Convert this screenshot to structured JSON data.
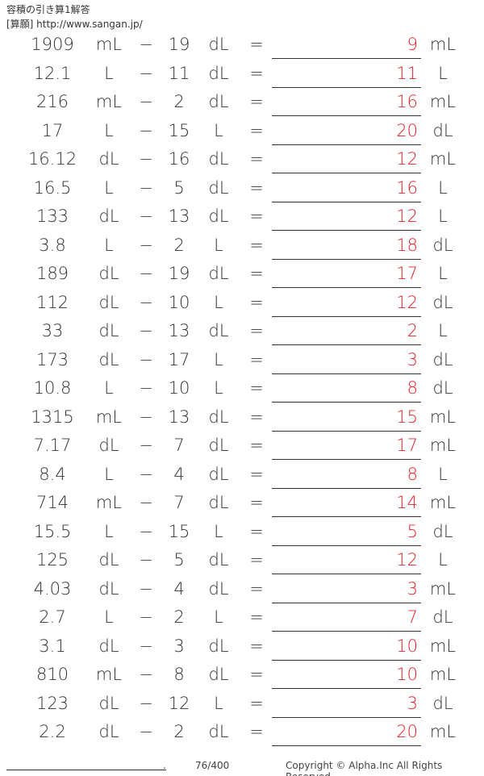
{
  "header": {
    "title": "容積の引き算1解答",
    "subtitle": "[算願] http://www.sangan.jp/"
  },
  "rows": [
    {
      "a": "1909",
      "ua": "mL",
      "op": "−",
      "b": "19",
      "ub": "dL",
      "eq": "=",
      "ans": "9",
      "uans": "mL"
    },
    {
      "a": "12.1",
      "ua": "L",
      "op": "−",
      "b": "11",
      "ub": "dL",
      "eq": "=",
      "ans": "11",
      "uans": "L"
    },
    {
      "a": "216",
      "ua": "mL",
      "op": "−",
      "b": "2",
      "ub": "dL",
      "eq": "=",
      "ans": "16",
      "uans": "mL"
    },
    {
      "a": "17",
      "ua": "L",
      "op": "−",
      "b": "15",
      "ub": "L",
      "eq": "=",
      "ans": "20",
      "uans": "dL"
    },
    {
      "a": "16.12",
      "ua": "dL",
      "op": "−",
      "b": "16",
      "ub": "dL",
      "eq": "=",
      "ans": "12",
      "uans": "mL"
    },
    {
      "a": "16.5",
      "ua": "L",
      "op": "−",
      "b": "5",
      "ub": "dL",
      "eq": "=",
      "ans": "16",
      "uans": "L"
    },
    {
      "a": "133",
      "ua": "dL",
      "op": "−",
      "b": "13",
      "ub": "dL",
      "eq": "=",
      "ans": "12",
      "uans": "L"
    },
    {
      "a": "3.8",
      "ua": "L",
      "op": "−",
      "b": "2",
      "ub": "L",
      "eq": "=",
      "ans": "18",
      "uans": "dL"
    },
    {
      "a": "189",
      "ua": "dL",
      "op": "−",
      "b": "19",
      "ub": "dL",
      "eq": "=",
      "ans": "17",
      "uans": "L"
    },
    {
      "a": "112",
      "ua": "dL",
      "op": "−",
      "b": "10",
      "ub": "L",
      "eq": "=",
      "ans": "12",
      "uans": "dL"
    },
    {
      "a": "33",
      "ua": "dL",
      "op": "−",
      "b": "13",
      "ub": "dL",
      "eq": "=",
      "ans": "2",
      "uans": "L"
    },
    {
      "a": "173",
      "ua": "dL",
      "op": "−",
      "b": "17",
      "ub": "L",
      "eq": "=",
      "ans": "3",
      "uans": "dL"
    },
    {
      "a": "10.8",
      "ua": "L",
      "op": "−",
      "b": "10",
      "ub": "L",
      "eq": "=",
      "ans": "8",
      "uans": "dL"
    },
    {
      "a": "1315",
      "ua": "mL",
      "op": "−",
      "b": "13",
      "ub": "dL",
      "eq": "=",
      "ans": "15",
      "uans": "mL"
    },
    {
      "a": "7.17",
      "ua": "dL",
      "op": "−",
      "b": "7",
      "ub": "dL",
      "eq": "=",
      "ans": "17",
      "uans": "mL"
    },
    {
      "a": "8.4",
      "ua": "L",
      "op": "−",
      "b": "4",
      "ub": "dL",
      "eq": "=",
      "ans": "8",
      "uans": "L"
    },
    {
      "a": "714",
      "ua": "mL",
      "op": "−",
      "b": "7",
      "ub": "dL",
      "eq": "=",
      "ans": "14",
      "uans": "mL"
    },
    {
      "a": "15.5",
      "ua": "L",
      "op": "−",
      "b": "15",
      "ub": "L",
      "eq": "=",
      "ans": "5",
      "uans": "dL"
    },
    {
      "a": "125",
      "ua": "dL",
      "op": "−",
      "b": "5",
      "ub": "dL",
      "eq": "=",
      "ans": "12",
      "uans": "L"
    },
    {
      "a": "4.03",
      "ua": "dL",
      "op": "−",
      "b": "4",
      "ub": "dL",
      "eq": "=",
      "ans": "3",
      "uans": "mL"
    },
    {
      "a": "2.7",
      "ua": "L",
      "op": "−",
      "b": "2",
      "ub": "L",
      "eq": "=",
      "ans": "7",
      "uans": "dL"
    },
    {
      "a": "3.1",
      "ua": "dL",
      "op": "−",
      "b": "3",
      "ub": "dL",
      "eq": "=",
      "ans": "10",
      "uans": "mL"
    },
    {
      "a": "810",
      "ua": "mL",
      "op": "−",
      "b": "8",
      "ub": "dL",
      "eq": "=",
      "ans": "10",
      "uans": "mL"
    },
    {
      "a": "123",
      "ua": "dL",
      "op": "−",
      "b": "12",
      "ub": "L",
      "eq": "=",
      "ans": "3",
      "uans": "dL"
    },
    {
      "a": "2.2",
      "ua": "dL",
      "op": "−",
      "b": "2",
      "ub": "dL",
      "eq": "=",
      "ans": "20",
      "uans": "mL"
    }
  ],
  "footer": {
    "dot": ".",
    "page": "76/400",
    "copyright": "Copyright © Alpha.Inc All Rights Reserved."
  },
  "colors": {
    "answer": "#e8202a"
  }
}
